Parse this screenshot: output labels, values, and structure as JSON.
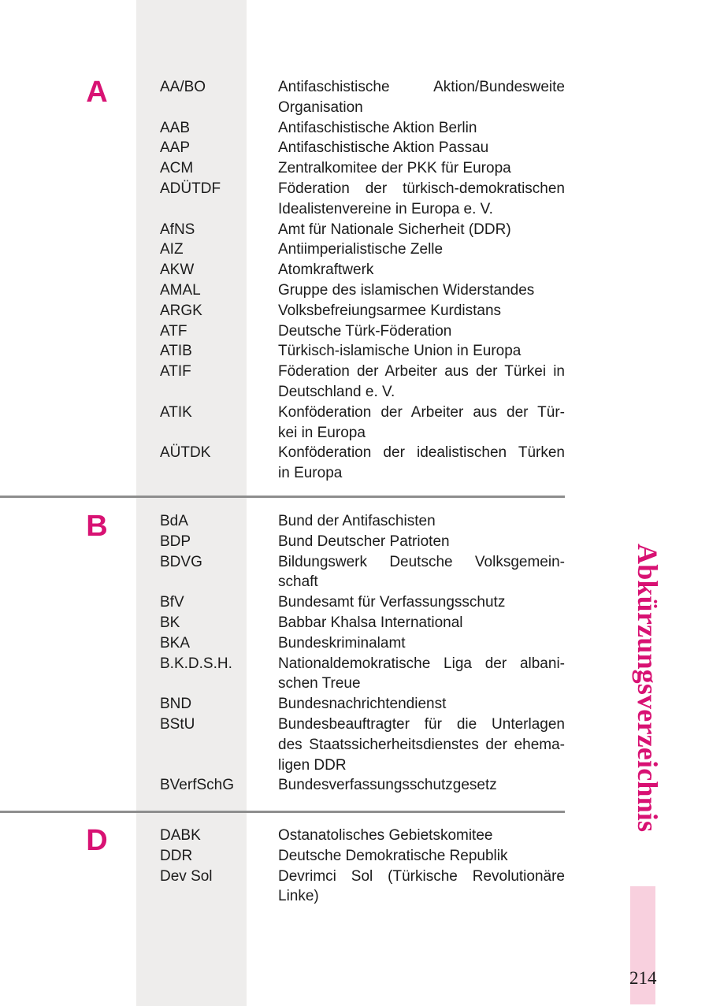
{
  "page": {
    "vertical_title": "Abkürzungsverzeichnis",
    "number": "214"
  },
  "colors": {
    "accent_pink": "#D81273",
    "accent_pink_light": "#F8D0DE",
    "column_background": "#EEEDEC",
    "divider_gray": "#8E8E8E",
    "text": "#1b1b1b"
  },
  "sections": [
    {
      "letter": "A",
      "entries": [
        {
          "abbr": "AA/BO",
          "lines": [
            "Antifaschistische Aktion/Bundesweite",
            "Organisation"
          ]
        },
        {
          "abbr": "AAB",
          "lines": [
            "Antifaschistische Aktion Berlin"
          ]
        },
        {
          "abbr": "AAP",
          "lines": [
            "Antifaschistische Aktion Passau"
          ]
        },
        {
          "abbr": "ACM",
          "lines": [
            "Zentralkomitee der PKK für Europa"
          ]
        },
        {
          "abbr": "ADÜTDF",
          "lines": [
            "Föderation der türkisch-demokratischen",
            "Idealistenvereine in Europa e. V."
          ]
        },
        {
          "abbr": "AfNS",
          "lines": [
            "Amt für Nationale Sicherheit (DDR)"
          ]
        },
        {
          "abbr": "AIZ",
          "lines": [
            "Antiimperialistische Zelle"
          ]
        },
        {
          "abbr": "AKW",
          "lines": [
            "Atomkraftwerk"
          ]
        },
        {
          "abbr": "AMAL",
          "lines": [
            "Gruppe des islamischen Widerstandes"
          ]
        },
        {
          "abbr": "ARGK",
          "lines": [
            "Volksbefreiungsarmee Kurdistans"
          ]
        },
        {
          "abbr": "ATF",
          "lines": [
            "Deutsche Türk-Föderation"
          ]
        },
        {
          "abbr": "ATIB",
          "lines": [
            "Türkisch-islamische Union in Europa"
          ]
        },
        {
          "abbr": "ATIF",
          "lines": [
            "Föderation der Arbeiter aus der Türkei in",
            "Deutschland e. V."
          ]
        },
        {
          "abbr": "ATIK",
          "lines": [
            "Konföderation der Arbeiter aus der Tür-",
            "kei in Europa"
          ]
        },
        {
          "abbr": "AÜTDK",
          "lines": [
            "Konföderation der idealistischen Türken",
            "in Europa"
          ]
        }
      ]
    },
    {
      "letter": "B",
      "entries": [
        {
          "abbr": "BdA",
          "lines": [
            "Bund der Antifaschisten"
          ]
        },
        {
          "abbr": "BDP",
          "lines": [
            "Bund Deutscher Patrioten"
          ]
        },
        {
          "abbr": "BDVG",
          "lines": [
            "Bildungswerk Deutsche Volksgemein-",
            "schaft"
          ]
        },
        {
          "abbr": "BfV",
          "lines": [
            "Bundesamt für Verfassungsschutz"
          ]
        },
        {
          "abbr": "BK",
          "lines": [
            "Babbar Khalsa International"
          ]
        },
        {
          "abbr": "BKA",
          "lines": [
            "Bundeskriminalamt"
          ]
        },
        {
          "abbr": "B.K.D.S.H.",
          "lines": [
            "Nationaldemokratische Liga der albani-",
            "schen Treue"
          ]
        },
        {
          "abbr": "BND",
          "lines": [
            "Bundesnachrichtendienst"
          ]
        },
        {
          "abbr": "BStU",
          "lines": [
            "Bundesbeauftragter für die Unterlagen",
            "des Staatssicherheitsdienstes der ehema-",
            "ligen DDR"
          ]
        },
        {
          "abbr": "BVerfSchG",
          "lines": [
            "Bundesverfassungsschutzgesetz"
          ]
        }
      ]
    },
    {
      "letter": "D",
      "entries": [
        {
          "abbr": "DABK",
          "lines": [
            "Ostanatolisches Gebietskomitee"
          ]
        },
        {
          "abbr": "DDR",
          "lines": [
            "Deutsche Demokratische Republik"
          ]
        },
        {
          "abbr": "Dev Sol",
          "lines": [
            "Devrimci Sol (Türkische Revolutionäre",
            "Linke)"
          ]
        }
      ]
    }
  ]
}
